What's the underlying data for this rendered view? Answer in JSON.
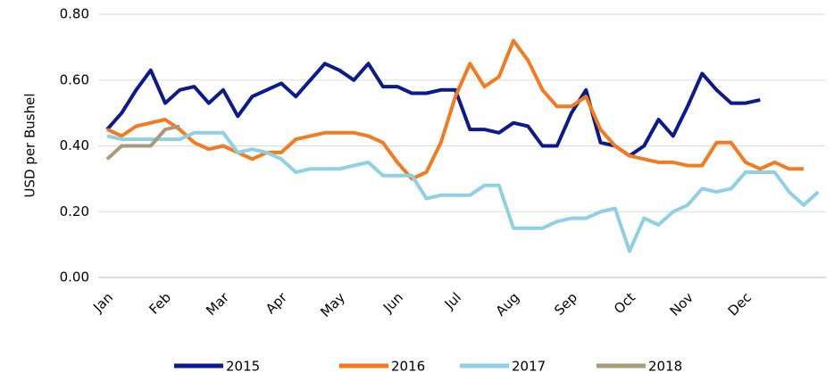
{
  "chart_data": {
    "type": "line",
    "ylabel": "USD per Bushel",
    "categories": [
      "Jan",
      null,
      null,
      null,
      "Feb",
      null,
      null,
      null,
      "Mar",
      null,
      null,
      null,
      "Apr",
      null,
      null,
      null,
      "May",
      null,
      null,
      null,
      "Jun",
      null,
      null,
      null,
      "Jul",
      null,
      null,
      null,
      "Aug",
      null,
      null,
      null,
      "Sep",
      null,
      null,
      null,
      "Oct",
      null,
      null,
      null,
      "Nov",
      null,
      null,
      null,
      "Dec",
      null,
      null,
      null,
      null,
      null
    ],
    "ylim": [
      0,
      0.8
    ],
    "yticks": [
      {
        "value": 0,
        "label": "0.00"
      },
      {
        "value": 0.2,
        "label": "0.20"
      },
      {
        "value": 0.4,
        "label": "0.40"
      },
      {
        "value": 0.6,
        "label": "0.60"
      },
      {
        "value": 0.8,
        "label": "0.80"
      }
    ],
    "grid": true,
    "legend": "bottom",
    "series": [
      {
        "name": "2015",
        "color": "#0b1a8c",
        "values": [
          0.45,
          0.5,
          0.57,
          0.63,
          0.53,
          0.57,
          0.58,
          0.53,
          0.57,
          0.49,
          0.55,
          0.57,
          0.59,
          0.55,
          0.6,
          0.65,
          0.63,
          0.6,
          0.65,
          0.58,
          0.58,
          0.56,
          0.56,
          0.57,
          0.57,
          0.45,
          0.45,
          0.44,
          0.47,
          0.46,
          0.4,
          0.4,
          0.5,
          0.57,
          0.41,
          0.4,
          0.37,
          0.4,
          0.48,
          0.43,
          0.52,
          0.62,
          0.57,
          0.53,
          0.53,
          0.54,
          null,
          null,
          null,
          null
        ]
      },
      {
        "name": "2016",
        "color": "#f47a1f",
        "values": [
          0.45,
          0.43,
          0.46,
          0.47,
          0.48,
          0.45,
          0.41,
          0.39,
          0.4,
          0.38,
          0.36,
          0.38,
          0.38,
          0.42,
          0.43,
          0.44,
          0.44,
          0.44,
          0.43,
          0.41,
          0.35,
          0.3,
          0.32,
          0.41,
          0.55,
          0.65,
          0.58,
          0.61,
          0.72,
          0.66,
          0.57,
          0.52,
          0.52,
          0.55,
          0.45,
          0.4,
          0.37,
          0.36,
          0.35,
          0.35,
          0.34,
          0.34,
          0.41,
          0.41,
          0.35,
          0.33,
          0.35,
          0.33,
          0.33,
          null
        ]
      },
      {
        "name": "2017",
        "color": "#8fd0e2",
        "values": [
          0.43,
          0.42,
          0.42,
          0.42,
          0.42,
          0.42,
          0.44,
          0.44,
          0.44,
          0.38,
          0.39,
          0.38,
          0.36,
          0.32,
          0.33,
          0.33,
          0.33,
          0.34,
          0.35,
          0.31,
          0.31,
          0.31,
          0.24,
          0.25,
          0.25,
          0.25,
          0.28,
          0.28,
          0.15,
          0.15,
          0.15,
          0.17,
          0.18,
          0.18,
          0.2,
          0.21,
          0.08,
          0.18,
          0.16,
          0.2,
          0.22,
          0.27,
          0.26,
          0.27,
          0.32,
          0.32,
          0.32,
          0.26,
          0.22,
          0.26
        ]
      },
      {
        "name": "2018",
        "color": "#a89a7a",
        "values": [
          0.36,
          0.4,
          0.4,
          0.4,
          0.45,
          0.46,
          null,
          null,
          null,
          null,
          null,
          null,
          null,
          null,
          null,
          null,
          null,
          null,
          null,
          null,
          null,
          null,
          null,
          null,
          null,
          null,
          null,
          null,
          null,
          null,
          null,
          null,
          null,
          null,
          null,
          null,
          null,
          null,
          null,
          null,
          null,
          null,
          null,
          null,
          null,
          null,
          null,
          null,
          null,
          null
        ]
      }
    ]
  }
}
